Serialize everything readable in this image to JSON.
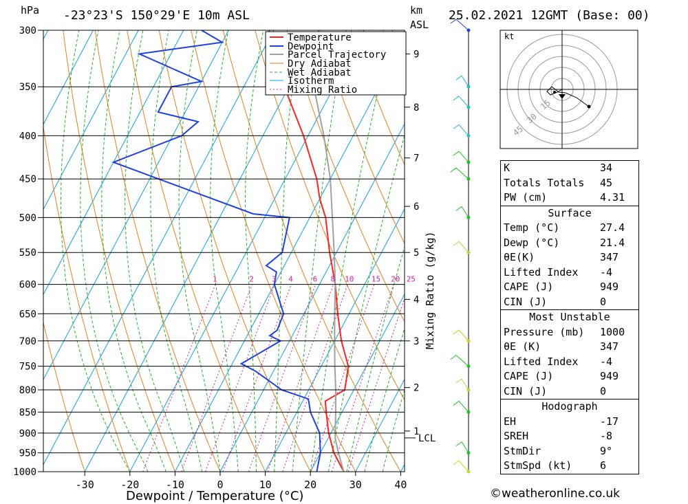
{
  "header": {
    "hpa_label": "hPa",
    "location": "-23°23'S 150°29'E 10m ASL",
    "km_label": "km",
    "asl_label": "ASL",
    "datetime": "25.02.2021 12GMT (Base: 00)"
  },
  "chart_data": {
    "type": "line",
    "title": "-23°23'S 150°29'E 10m ASL",
    "xlabel": "Dewpoint / Temperature (°C)",
    "ylabel": "hPa",
    "right_label": "Mixing Ratio (g/kg)",
    "xlim": [
      -40,
      40
    ],
    "ylim": [
      1000,
      300
    ],
    "x_ticks": [
      -30,
      -20,
      -10,
      0,
      10,
      20,
      30,
      40
    ],
    "x_tick_labels": [
      "-30",
      "-20",
      "-10",
      "0",
      "10",
      "20",
      "30",
      "40"
    ],
    "pressure_levels": [
      300,
      350,
      400,
      450,
      500,
      550,
      600,
      650,
      700,
      750,
      800,
      850,
      900,
      950,
      1000
    ],
    "pressure_labels": [
      "300",
      "350",
      "400",
      "450",
      "500",
      "550",
      "600",
      "650",
      "700",
      "750",
      "800",
      "850",
      "900",
      "950",
      "1000"
    ],
    "km_ticks": [
      {
        "label": "9",
        "hpa": 320
      },
      {
        "label": "8",
        "hpa": 370
      },
      {
        "label": "7",
        "hpa": 425
      },
      {
        "label": "6",
        "hpa": 485
      },
      {
        "label": "5",
        "hpa": 550
      },
      {
        "label": "4",
        "hpa": 625
      },
      {
        "label": "3",
        "hpa": 700
      },
      {
        "label": "2",
        "hpa": 795
      },
      {
        "label": "1",
        "hpa": 895
      }
    ],
    "lcl": {
      "label": "LCL",
      "hpa": 912
    },
    "mixing_ratio_labels": [
      "1",
      "2",
      "3",
      "4",
      "6",
      "8",
      "10",
      "15",
      "20",
      "25"
    ],
    "mixing_ratio_values": [
      1,
      2,
      3,
      4,
      6,
      8,
      10,
      15,
      20,
      25
    ],
    "legend": [
      "Temperature",
      "Dewpoint",
      "Parcel Trajectory",
      "Dry Adiabat",
      "Wet Adiabat",
      "Isotherm",
      "Mixing Ratio"
    ],
    "series": [
      {
        "name": "Temperature",
        "color": "#ff2020",
        "points": [
          [
            1000,
            27.4
          ],
          [
            950,
            23
          ],
          [
            900,
            19.5
          ],
          [
            850,
            16.5
          ],
          [
            825,
            15
          ],
          [
            800,
            18
          ],
          [
            750,
            16
          ],
          [
            700,
            11.5
          ],
          [
            650,
            7.5
          ],
          [
            600,
            3.5
          ],
          [
            550,
            -1.5
          ],
          [
            500,
            -6.5
          ],
          [
            475,
            -10
          ],
          [
            450,
            -13
          ],
          [
            400,
            -21
          ],
          [
            350,
            -31
          ],
          [
            300,
            -41
          ]
        ]
      },
      {
        "name": "Dewpoint",
        "color": "#2040e0",
        "points": [
          [
            1000,
            21.4
          ],
          [
            950,
            20
          ],
          [
            900,
            17.5
          ],
          [
            850,
            13
          ],
          [
            820,
            11
          ],
          [
            800,
            4
          ],
          [
            760,
            -4
          ],
          [
            745,
            -8
          ],
          [
            700,
            -2
          ],
          [
            690,
            -5
          ],
          [
            680,
            -4
          ],
          [
            650,
            -4.5
          ],
          [
            600,
            -10
          ],
          [
            580,
            -11
          ],
          [
            570,
            -14
          ],
          [
            550,
            -12
          ],
          [
            500,
            -14.5
          ],
          [
            495,
            -23
          ],
          [
            430,
            -60
          ],
          [
            400,
            -48
          ],
          [
            385,
            -46
          ],
          [
            375,
            -56
          ],
          [
            350,
            -56
          ],
          [
            345,
            -50
          ],
          [
            320,
            -67
          ],
          [
            310,
            -50
          ],
          [
            300,
            -56
          ]
        ]
      },
      {
        "name": "Parcel Trajectory",
        "color": "#a0a0a0",
        "points": [
          [
            1000,
            27.4
          ],
          [
            950,
            24
          ],
          [
            912,
            21.5
          ],
          [
            850,
            18.6
          ],
          [
            800,
            16
          ],
          [
            750,
            13
          ],
          [
            700,
            10
          ],
          [
            650,
            6.8
          ],
          [
            600,
            3.5
          ],
          [
            550,
            -0.5
          ],
          [
            500,
            -5
          ],
          [
            450,
            -10
          ],
          [
            400,
            -16.5
          ],
          [
            350,
            -24.5
          ],
          [
            320,
            -30
          ]
        ]
      }
    ]
  },
  "hodograph": {
    "unit": "kt",
    "ring_labels": [
      "15",
      "30",
      "45"
    ]
  },
  "indices": [
    {
      "label": "K",
      "value": "34"
    },
    {
      "label": "Totals Totals",
      "value": "45"
    },
    {
      "label": "PW (cm)",
      "value": "4.31"
    }
  ],
  "surface": {
    "title": "Surface",
    "rows": [
      {
        "label": "Temp (°C)",
        "value": "27.4"
      },
      {
        "label": "Dewp (°C)",
        "value": "21.4"
      },
      {
        "label": "θE(K)",
        "value": "347"
      },
      {
        "label": "Lifted Index",
        "value": "-4"
      },
      {
        "label": "CAPE (J)",
        "value": "949"
      },
      {
        "label": "CIN (J)",
        "value": "0"
      }
    ]
  },
  "most_unstable": {
    "title": "Most Unstable",
    "rows": [
      {
        "label": "Pressure (mb)",
        "value": "1000"
      },
      {
        "label": "θE (K)",
        "value": "347"
      },
      {
        "label": "Lifted Index",
        "value": "-4"
      },
      {
        "label": "CAPE (J)",
        "value": "949"
      },
      {
        "label": "CIN (J)",
        "value": "0"
      }
    ]
  },
  "hodograph_table": {
    "title": "Hodograph",
    "rows": [
      {
        "label": "EH",
        "value": "-17"
      },
      {
        "label": "SREH",
        "value": "-8"
      },
      {
        "label": "StmDir",
        "value": "9°"
      },
      {
        "label": "StmSpd (kt)",
        "value": "6"
      }
    ]
  },
  "credit": "©weatheronline.co.uk",
  "colors": {
    "temperature": "#ff2020",
    "dewpoint": "#2040e0",
    "parcel": "#a0a0a0",
    "dry_adiabat": "#e08020",
    "wet_adiabat": "#20b020",
    "isotherm": "#10a0e0",
    "mixing_ratio": "#d020a0"
  },
  "wind_barbs": [
    {
      "hpa": 300,
      "color": "#2040e0"
    },
    {
      "hpa": 350,
      "color": "#20c0c0"
    },
    {
      "hpa": 370,
      "color": "#20c0c0"
    },
    {
      "hpa": 400,
      "color": "#20c0c0"
    },
    {
      "hpa": 430,
      "color": "#20c020"
    },
    {
      "hpa": 450,
      "color": "#20c020"
    },
    {
      "hpa": 500,
      "color": "#20c020"
    },
    {
      "hpa": 550,
      "color": "#c0d040"
    },
    {
      "hpa": 700,
      "color": "#d0d020"
    },
    {
      "hpa": 750,
      "color": "#20c020"
    },
    {
      "hpa": 800,
      "color": "#c0d040"
    },
    {
      "hpa": 850,
      "color": "#20c020"
    },
    {
      "hpa": 950,
      "color": "#20c020"
    },
    {
      "hpa": 1000,
      "color": "#c0e020"
    }
  ]
}
